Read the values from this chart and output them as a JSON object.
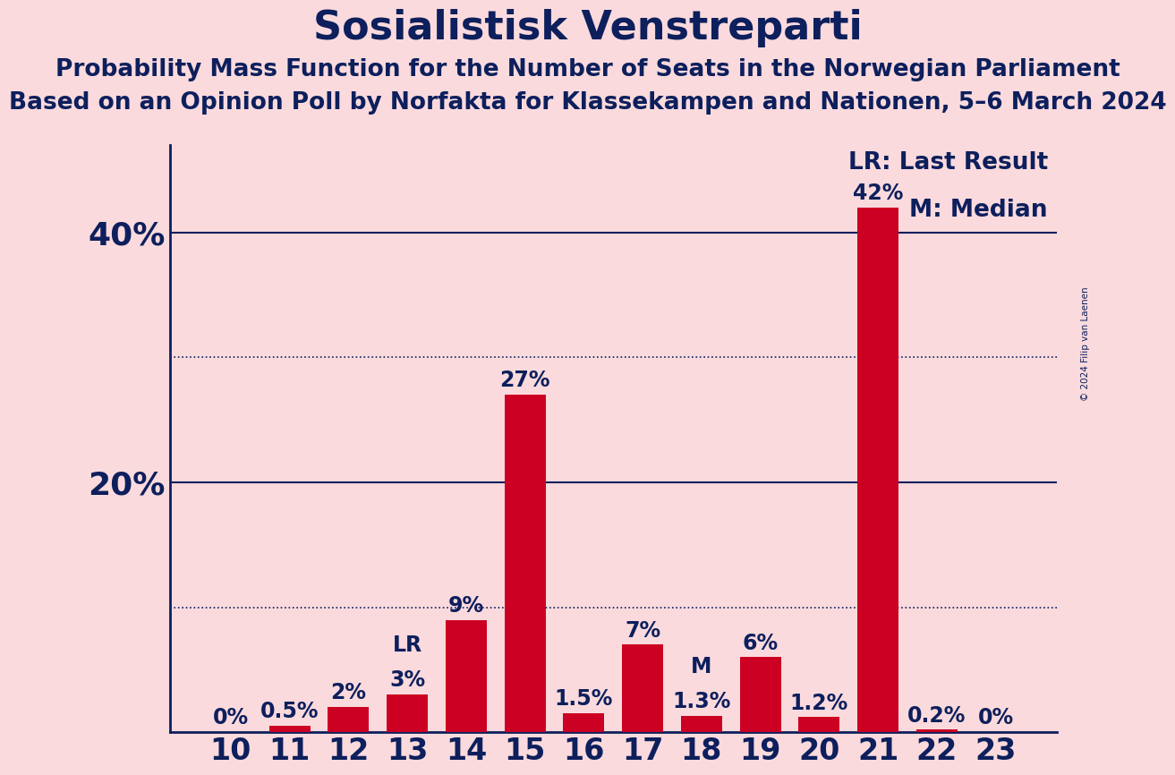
{
  "title": "Sosialistisk Venstreparti",
  "subtitle1": "Probability Mass Function for the Number of Seats in the Norwegian Parliament",
  "subtitle2": "Based on an Opinion Poll by Norfakta for Klassekampen and Nationen, 5–6 March 2024",
  "copyright": "© 2024 Filip van Laenen",
  "categories": [
    10,
    11,
    12,
    13,
    14,
    15,
    16,
    17,
    18,
    19,
    20,
    21,
    22,
    23
  ],
  "values": [
    0.0,
    0.5,
    2.0,
    3.0,
    9.0,
    27.0,
    1.5,
    7.0,
    1.3,
    6.0,
    1.2,
    42.0,
    0.2,
    0.0
  ],
  "labels": [
    "0%",
    "0.5%",
    "2%",
    "3%",
    "9%",
    "27%",
    "1.5%",
    "7%",
    "1.3%",
    "6%",
    "1.2%",
    "42%",
    "0.2%",
    "0%"
  ],
  "bar_color": "#CC0022",
  "background_color": "#FADADD",
  "text_color": "#0D1F5C",
  "yticks": [
    0,
    10,
    20,
    30,
    40
  ],
  "ytick_labels": [
    "",
    "",
    "20%",
    "",
    "40%"
  ],
  "ylim": [
    0,
    47
  ],
  "last_result_seat": 13,
  "median_seat": 18,
  "legend_lr": "LR: Last Result",
  "legend_m": "M: Median",
  "solid_gridlines": [
    20,
    40
  ],
  "dotted_gridlines": [
    10,
    30
  ],
  "title_fontsize": 32,
  "subtitle_fontsize": 19,
  "label_fontsize": 17,
  "tick_fontsize": 24,
  "ytick_fontsize": 26
}
